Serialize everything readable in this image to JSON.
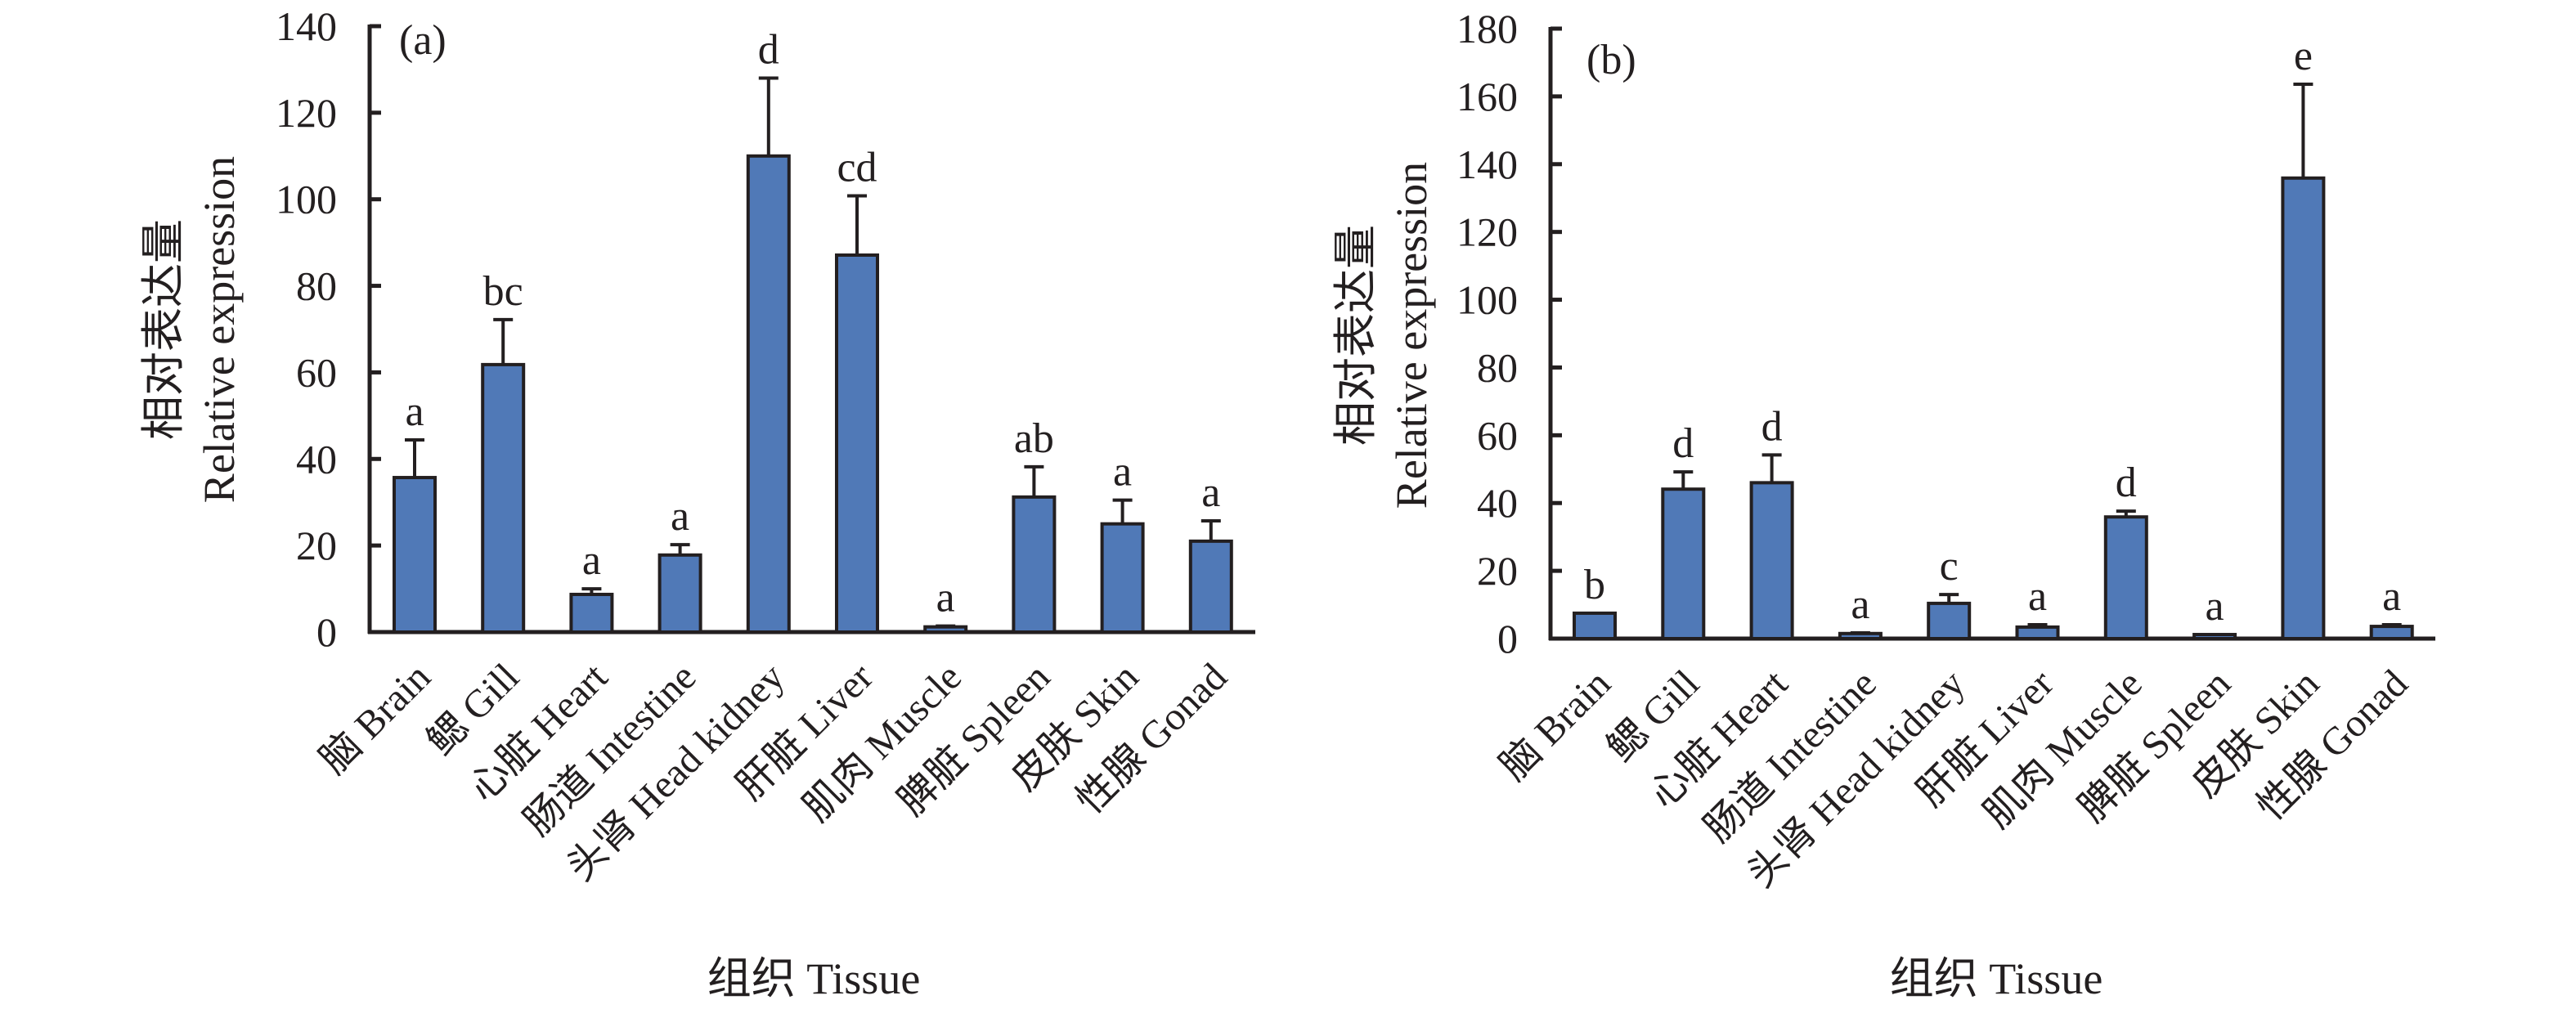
{
  "chart_data": [
    {
      "type": "bar",
      "panel_label": "(a)",
      "title": "",
      "xlabel": "组织 Tissue",
      "ylabel_cn": "相对表达量",
      "ylabel": "Relative expression",
      "ylim": [
        0,
        140
      ],
      "yticks": [
        0,
        20,
        40,
        60,
        80,
        100,
        120,
        140
      ],
      "bar_color": "#5079b7",
      "grid": false,
      "categories": [
        "脑 Brain",
        "鳃 Gill",
        "心脏 Heart",
        "肠道 Intestine",
        "头肾 Head kidney",
        "肝脏 Liver",
        "肌肉 Muscle",
        "脾脏 Spleen",
        "皮肤 Skin",
        "性腺 Gonad"
      ],
      "values": [
        35.7,
        61.8,
        8.7,
        17.8,
        110.0,
        87.1,
        1.2,
        31.2,
        25.0,
        21.0
      ],
      "error_upper": [
        44.4,
        72.2,
        10.0,
        20.2,
        128.0,
        100.8,
        1.4,
        38.2,
        30.5,
        25.7
      ],
      "significance": [
        "a",
        "bc",
        "a",
        "a",
        "d",
        "cd",
        "a",
        "ab",
        "a",
        "a"
      ]
    },
    {
      "type": "bar",
      "panel_label": "(b)",
      "title": "",
      "xlabel": "组织 Tissue",
      "ylabel_cn": "相对表达量",
      "ylabel": "Relative expression",
      "ylim": [
        0,
        180
      ],
      "yticks": [
        0,
        20,
        40,
        60,
        80,
        100,
        120,
        140,
        160,
        180
      ],
      "bar_color": "#5079b7",
      "grid": false,
      "categories": [
        "脑 Brain",
        "鳃 Gill",
        "心脏 Heart",
        "肠道 Intestine",
        "头肾 Head kidney",
        "肝脏 Liver",
        "肌肉 Muscle",
        "脾脏 Spleen",
        "皮肤 Skin",
        "性腺 Gonad"
      ],
      "values": [
        7.5,
        44.1,
        46.0,
        1.5,
        10.4,
        3.4,
        35.9,
        1.2,
        135.9,
        3.6
      ],
      "error_upper": [
        7.5,
        49.2,
        54.2,
        1.7,
        13.0,
        4.1,
        37.6,
        1.2,
        163.6,
        4.1
      ],
      "significance": [
        "b",
        "d",
        "d",
        "a",
        "c",
        "a",
        "d",
        "a",
        "e",
        "a"
      ]
    }
  ]
}
